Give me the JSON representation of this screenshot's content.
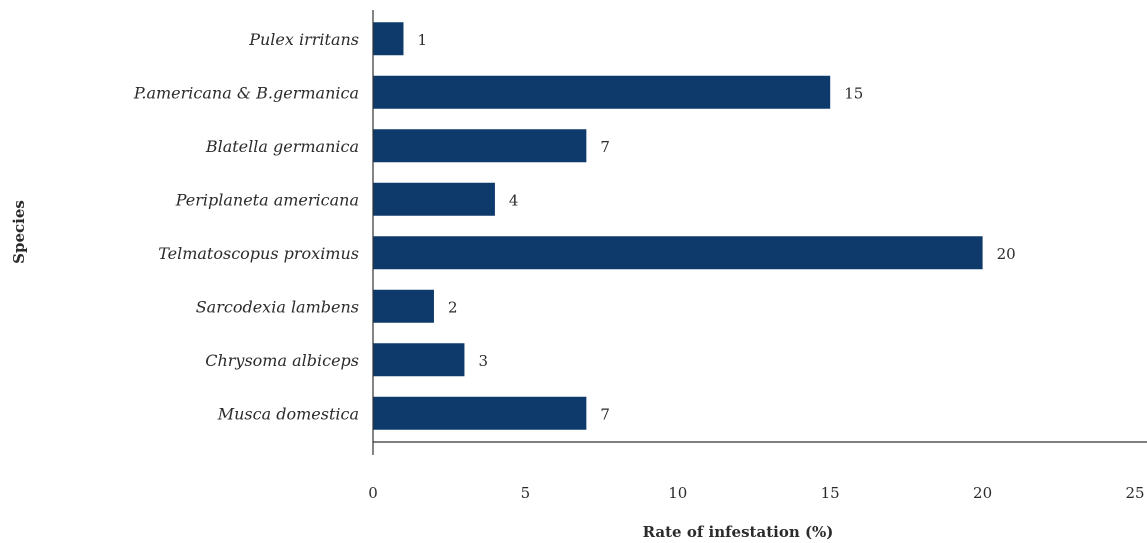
{
  "chart_data": {
    "type": "bar",
    "orientation": "horizontal",
    "categories": [
      "Pulex irritans",
      "P.americana & B.germanica",
      "Blatella germanica",
      "Periplaneta americana",
      "Telmatoscopus proximus",
      "Sarcodexia lambens",
      "Chrysoma albiceps",
      "Musca domestica"
    ],
    "values": [
      1,
      15,
      7,
      4,
      20,
      2,
      3,
      7
    ],
    "data_labels": [
      "1",
      "15",
      "7",
      "4",
      "20",
      "2",
      "3",
      "7"
    ],
    "xlabel": "Rate of infestation (%)",
    "ylabel": "Species",
    "xlim": [
      0,
      25
    ],
    "xticks": [
      0,
      5,
      10,
      15,
      20,
      25
    ],
    "tick_labels": [
      "0",
      "5",
      "10",
      "15",
      "20",
      "25"
    ],
    "grid": false,
    "bar_color": "#0e3a6b",
    "axis_color": "#333333"
  }
}
